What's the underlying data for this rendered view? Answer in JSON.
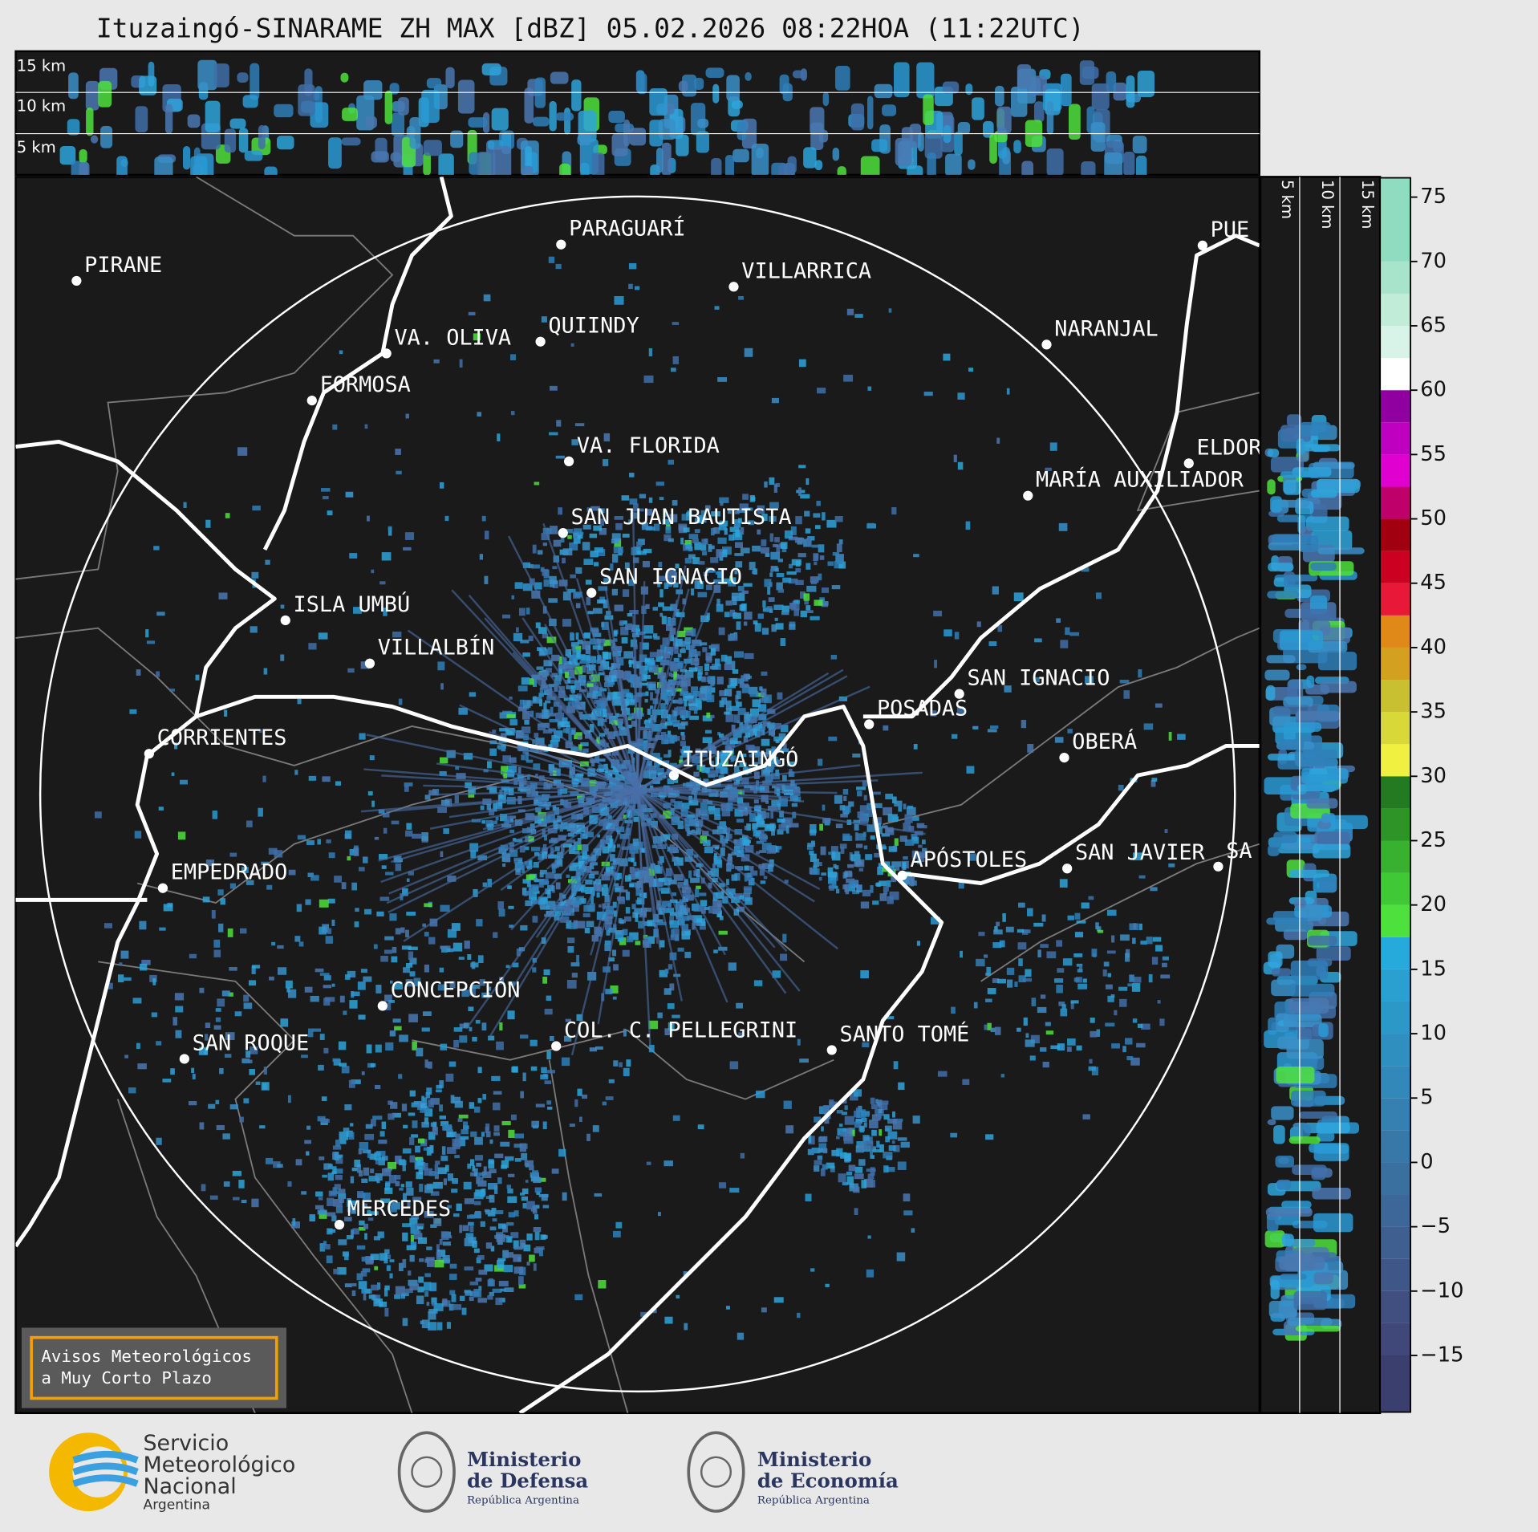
{
  "title": "Ituzaingó-SINARAME ZH MAX [dBZ] 05.02.2026 08:22HOA (11:22UTC)",
  "height_labels_top": [
    "15 km",
    "10 km",
    "5 km"
  ],
  "height_labels_side": [
    "5 km",
    "10 km",
    "15 km"
  ],
  "cities": [
    "PIRANE",
    "PARAGUARÍ",
    "VILLARRICA",
    "QUIINDY",
    "VA. OLIVA",
    "FORMOSA",
    "NARANJAL",
    "VA. FLORIDA",
    "SAN JUAN BAUTISTA",
    "ELDOR",
    "MARÍA AUXILIADOR",
    "SAN IGNACIO",
    "ISLA UMBÚ",
    "VILLALBÍN",
    "SAN IGNACIO",
    "POSADAS",
    "CORRIENTES",
    "ITUZAINGÓ",
    "OBERÁ",
    "APÓSTOLES",
    "SAN JAVIER",
    "SA",
    "EMPEDRADO",
    "CONCEPCIÓN",
    "COL. C. PELLEGRINI",
    "SANTO TOMÉ",
    "SAN ROQUE",
    "MERCEDES",
    "PUE"
  ],
  "colorbar": {
    "lim": [
      -19.4,
      76.5
    ],
    "ticks": [
      {
        "value": -15,
        "label": "−15"
      },
      {
        "value": -10,
        "label": "−10"
      },
      {
        "value": -5,
        "label": "−5"
      },
      0,
      5,
      10,
      15,
      20,
      25,
      30,
      35,
      40,
      45,
      50,
      55,
      60,
      65,
      70,
      75
    ],
    "bounds": [
      -19.4,
      -15,
      -12.5,
      -10,
      -7.5,
      -5,
      -2.5,
      0,
      2.5,
      5,
      7.5,
      10,
      12.5,
      15,
      17.5,
      20,
      22.5,
      25,
      27.5,
      30,
      32.5,
      35,
      37.5,
      40,
      42.5,
      45,
      47.5,
      50,
      52.5,
      55,
      57.5,
      60,
      62.5,
      65,
      67.5,
      70,
      76.5
    ],
    "colors": [
      "#3b3f6e",
      "#3f4878",
      "#404f80",
      "#3f5788",
      "#3e5f90",
      "#3c6798",
      "#3a70a0",
      "#3878a8",
      "#3580b0",
      "#3288b8",
      "#2f90c0",
      "#2c98c8",
      "#29a0d0",
      "#26aadc",
      "#4ee03c",
      "#40c836",
      "#38b030",
      "#2e9428",
      "#247a20",
      "#f0f040",
      "#d8d838",
      "#c8c030",
      "#d4a020",
      "#e08818",
      "#e81838",
      "#cc0020",
      "#a00010",
      "#c0006a",
      "#e000d0",
      "#c000c0",
      "#9000a0",
      "#ffffff",
      "#d8f4e8",
      "#c0ecd8",
      "#a8e4cc",
      "#90dcc0"
    ]
  },
  "warning": [
    "Avisos Meteorológicos",
    "a Muy Corto Plazo"
  ],
  "footer": {
    "smn": [
      "Servicio",
      "Meteorológico",
      "Nacional",
      "Argentina"
    ],
    "defensa": [
      "Ministerio",
      "de Defensa",
      "República Argentina"
    ],
    "economia": [
      "Ministerio",
      "de Economía",
      "República Argentina"
    ]
  }
}
